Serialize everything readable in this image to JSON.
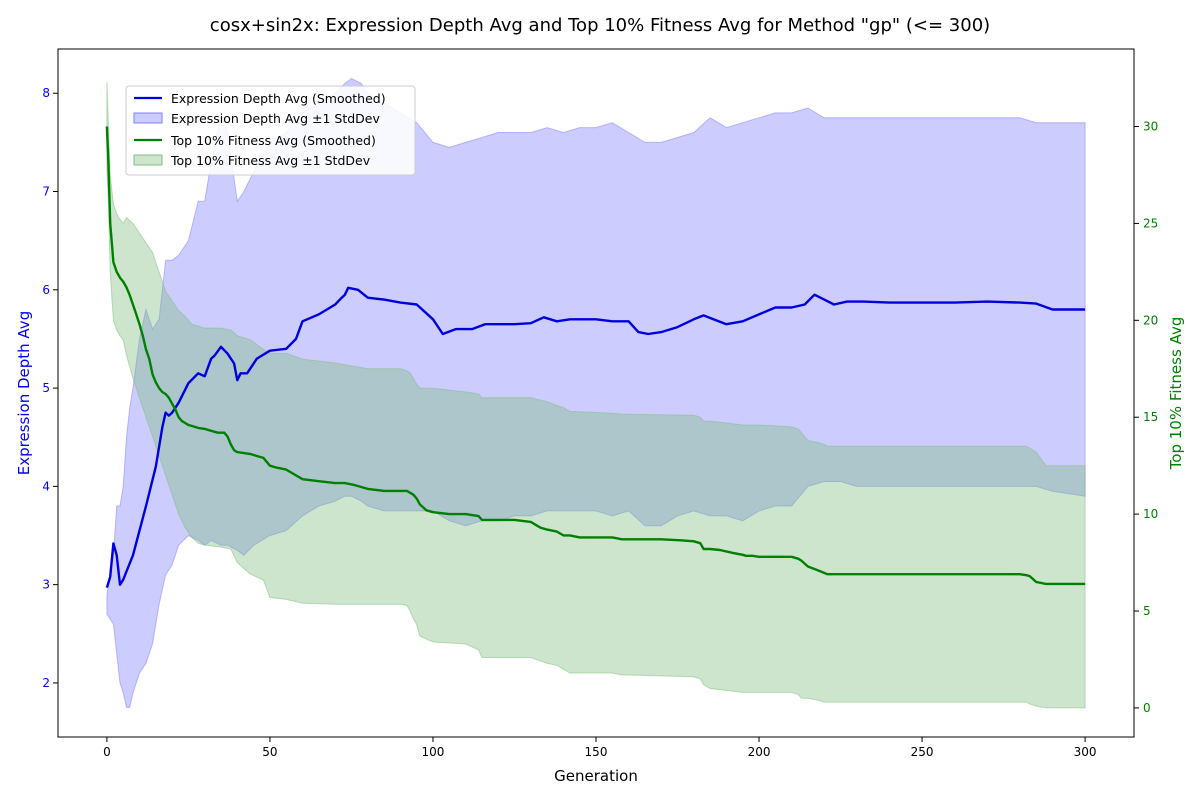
{
  "chart_data": {
    "type": "line",
    "title": "cosx+sin2x: Expression Depth Avg and Top 10% Fitness Avg for Method \"gp\" (<= 300)",
    "xlabel": "Generation",
    "ylabel_left": "Expression Depth Avg",
    "ylabel_right": "Top 10% Fitness Avg",
    "xlim": [
      -15,
      315
    ],
    "ylim_left": [
      1.45,
      8.45
    ],
    "ylim_right": [
      -1.5,
      34
    ],
    "xticks": [
      0,
      50,
      100,
      150,
      200,
      250,
      300
    ],
    "yticks_left": [
      2,
      3,
      4,
      5,
      6,
      7,
      8
    ],
    "yticks_right": [
      0,
      5,
      10,
      15,
      20,
      25,
      30
    ],
    "legend_position": "upper-left",
    "grid": false,
    "colors": {
      "depth": "#0000dd",
      "depth_band": "#8080ff",
      "fitness": "#008000",
      "fitness_band": "#7fbf7f",
      "left_axis_text": "#0000ff",
      "right_axis_text": "#008000"
    },
    "series": [
      {
        "name": "Expression Depth Avg (Smoothed)",
        "axis": "left",
        "x": [
          0,
          1,
          2,
          3,
          4,
          5,
          8,
          12,
          15,
          17,
          18,
          19,
          20,
          22,
          25,
          28,
          30,
          32,
          33,
          35,
          37,
          39,
          40,
          41,
          43,
          46,
          50,
          55,
          58,
          60,
          65,
          70,
          72,
          73,
          74,
          77,
          80,
          85,
          90,
          95,
          100,
          103,
          107,
          112,
          116,
          120,
          125,
          130,
          134,
          138,
          142,
          146,
          150,
          155,
          160,
          163,
          166,
          170,
          175,
          180,
          183,
          186,
          190,
          195,
          200,
          205,
          210,
          214,
          217,
          220,
          223,
          227,
          232,
          240,
          250,
          260,
          270,
          280,
          285,
          290,
          295,
          300
        ],
        "values": [
          2.97,
          3.08,
          3.42,
          3.3,
          3.0,
          3.05,
          3.3,
          3.8,
          4.2,
          4.6,
          4.75,
          4.72,
          4.75,
          4.85,
          5.05,
          5.15,
          5.12,
          5.3,
          5.33,
          5.42,
          5.35,
          5.25,
          5.08,
          5.15,
          5.15,
          5.3,
          5.38,
          5.4,
          5.5,
          5.68,
          5.75,
          5.85,
          5.92,
          5.95,
          6.02,
          6.0,
          5.92,
          5.9,
          5.87,
          5.85,
          5.7,
          5.55,
          5.6,
          5.6,
          5.65,
          5.65,
          5.65,
          5.66,
          5.72,
          5.68,
          5.7,
          5.7,
          5.7,
          5.68,
          5.68,
          5.57,
          5.55,
          5.57,
          5.62,
          5.7,
          5.74,
          5.7,
          5.65,
          5.68,
          5.75,
          5.82,
          5.82,
          5.85,
          5.95,
          5.9,
          5.85,
          5.88,
          5.88,
          5.87,
          5.87,
          5.87,
          5.88,
          5.87,
          5.86,
          5.8,
          5.8,
          5.8
        ]
      },
      {
        "name": "Expression Depth Avg ±1 StdDev",
        "axis": "left",
        "band": true,
        "x": [
          0,
          2,
          3,
          4,
          5,
          6,
          7,
          8,
          10,
          12,
          14,
          16,
          18,
          20,
          22,
          25,
          28,
          30,
          32,
          35,
          37,
          40,
          42,
          45,
          50,
          55,
          60,
          65,
          70,
          73,
          75,
          78,
          80,
          85,
          90,
          95,
          100,
          105,
          110,
          115,
          120,
          125,
          130,
          135,
          140,
          145,
          150,
          155,
          160,
          165,
          170,
          175,
          180,
          185,
          190,
          195,
          200,
          205,
          210,
          215,
          220,
          225,
          230,
          240,
          250,
          260,
          270,
          280,
          285,
          290,
          300
        ],
        "upper": [
          2.9,
          3.3,
          3.8,
          3.8,
          4.0,
          4.5,
          4.8,
          5.0,
          5.5,
          5.8,
          5.6,
          5.7,
          6.3,
          6.3,
          6.35,
          6.5,
          6.9,
          6.9,
          7.3,
          7.8,
          7.6,
          6.9,
          7.0,
          7.2,
          7.5,
          7.6,
          7.8,
          7.9,
          8.0,
          8.1,
          8.15,
          8.1,
          8.0,
          7.9,
          7.8,
          7.7,
          7.5,
          7.45,
          7.5,
          7.55,
          7.6,
          7.6,
          7.6,
          7.65,
          7.6,
          7.65,
          7.65,
          7.7,
          7.6,
          7.5,
          7.5,
          7.55,
          7.6,
          7.75,
          7.65,
          7.7,
          7.75,
          7.8,
          7.8,
          7.85,
          7.75,
          7.75,
          7.75,
          7.75,
          7.75,
          7.75,
          7.75,
          7.75,
          7.7,
          7.7,
          7.7
        ],
        "lower": [
          2.7,
          2.6,
          2.3,
          2.0,
          1.9,
          1.75,
          1.75,
          1.9,
          2.1,
          2.2,
          2.4,
          2.8,
          3.1,
          3.2,
          3.4,
          3.5,
          3.45,
          3.4,
          3.45,
          3.4,
          3.4,
          3.35,
          3.3,
          3.4,
          3.5,
          3.55,
          3.7,
          3.8,
          3.85,
          3.9,
          3.9,
          3.85,
          3.8,
          3.75,
          3.75,
          3.75,
          3.75,
          3.65,
          3.6,
          3.65,
          3.65,
          3.7,
          3.7,
          3.75,
          3.75,
          3.75,
          3.75,
          3.7,
          3.75,
          3.6,
          3.6,
          3.7,
          3.75,
          3.7,
          3.7,
          3.65,
          3.75,
          3.8,
          3.8,
          4.0,
          4.05,
          4.05,
          4.0,
          4.0,
          4.0,
          4.0,
          4.0,
          4.0,
          4.0,
          3.95,
          3.9
        ]
      },
      {
        "name": "Top 10% Fitness Avg (Smoothed)",
        "axis": "right",
        "x": [
          0,
          0.5,
          1,
          1.5,
          2,
          3,
          4,
          5,
          6,
          7,
          8,
          9,
          10,
          11,
          12,
          13,
          14,
          15,
          16,
          17,
          18,
          19,
          20,
          21,
          22,
          23,
          24,
          25,
          26,
          27,
          28,
          30,
          32,
          34,
          36,
          37,
          38,
          39,
          40,
          42,
          44,
          46,
          48,
          50,
          52,
          55,
          58,
          60,
          65,
          70,
          73,
          76,
          80,
          85,
          90,
          92,
          93,
          94,
          95,
          96,
          98,
          100,
          105,
          110,
          114,
          115,
          120,
          125,
          130,
          132,
          133,
          135,
          138,
          140,
          142,
          145,
          150,
          155,
          158,
          160,
          165,
          170,
          176,
          180,
          182,
          183,
          185,
          188,
          192,
          195,
          196,
          198,
          200,
          205,
          210,
          212,
          213,
          215,
          218,
          221,
          222,
          230,
          240,
          250,
          260,
          270,
          280,
          282,
          283,
          285,
          288,
          290,
          300
        ],
        "values": [
          30.0,
          28.0,
          25.0,
          24.0,
          23.0,
          22.5,
          22.2,
          22.0,
          21.7,
          21.3,
          20.8,
          20.3,
          19.8,
          19.2,
          18.5,
          18.0,
          17.2,
          16.8,
          16.5,
          16.3,
          16.2,
          16.0,
          15.7,
          15.4,
          15.0,
          14.8,
          14.7,
          14.6,
          14.55,
          14.5,
          14.45,
          14.4,
          14.3,
          14.2,
          14.2,
          14.0,
          13.6,
          13.3,
          13.2,
          13.15,
          13.1,
          13.0,
          12.9,
          12.5,
          12.4,
          12.3,
          12.0,
          11.8,
          11.7,
          11.6,
          11.6,
          11.5,
          11.3,
          11.2,
          11.2,
          11.2,
          11.1,
          11.0,
          10.8,
          10.5,
          10.2,
          10.1,
          10.0,
          10.0,
          9.9,
          9.7,
          9.7,
          9.7,
          9.6,
          9.4,
          9.3,
          9.2,
          9.1,
          8.9,
          8.9,
          8.8,
          8.8,
          8.8,
          8.7,
          8.7,
          8.7,
          8.7,
          8.65,
          8.6,
          8.5,
          8.2,
          8.2,
          8.15,
          8.0,
          7.9,
          7.85,
          7.85,
          7.8,
          7.8,
          7.8,
          7.7,
          7.6,
          7.3,
          7.1,
          6.9,
          6.9,
          6.9,
          6.9,
          6.9,
          6.9,
          6.9,
          6.9,
          6.85,
          6.8,
          6.5,
          6.4,
          6.4,
          6.4
        ]
      },
      {
        "name": "Top 10% Fitness Avg ±1 StdDev",
        "axis": "right",
        "band": true,
        "x": [
          0,
          0.5,
          1,
          2,
          3,
          4,
          5,
          6,
          8,
          10,
          12,
          14,
          16,
          18,
          20,
          22,
          24,
          26,
          28,
          30,
          35,
          38,
          40,
          44,
          48,
          50,
          55,
          60,
          70,
          80,
          90,
          92,
          93,
          94,
          95,
          96,
          100,
          110,
          114,
          115,
          130,
          135,
          138,
          140,
          142,
          155,
          158,
          160,
          180,
          182,
          183,
          185,
          190,
          195,
          200,
          210,
          212,
          213,
          215,
          218,
          220,
          221,
          222,
          240,
          260,
          280,
          282,
          283,
          285,
          288,
          300
        ],
        "upper": [
          32.3,
          30.0,
          27.5,
          26.0,
          25.5,
          25.2,
          25.0,
          25.3,
          25.0,
          24.5,
          24.0,
          23.5,
          22.5,
          21.5,
          21.0,
          20.5,
          20.2,
          19.8,
          19.7,
          19.6,
          19.6,
          19.5,
          19.2,
          19.0,
          18.5,
          18.3,
          18.3,
          18.0,
          17.8,
          17.5,
          17.5,
          17.4,
          17.3,
          17.0,
          16.7,
          16.5,
          16.5,
          16.3,
          16.2,
          16.0,
          16.0,
          15.8,
          15.6,
          15.5,
          15.3,
          15.2,
          15.15,
          15.15,
          15.1,
          15.0,
          14.8,
          14.8,
          14.7,
          14.6,
          14.6,
          14.5,
          14.4,
          14.2,
          13.8,
          13.7,
          13.6,
          13.5,
          13.5,
          13.5,
          13.5,
          13.5,
          13.5,
          13.4,
          13.2,
          12.5,
          12.5
        ],
        "lower": [
          27.7,
          26.0,
          22.5,
          20.0,
          19.5,
          19.2,
          19.0,
          18.2,
          17.0,
          16.0,
          15.0,
          14.0,
          13.0,
          12.0,
          11.0,
          10.0,
          9.3,
          8.8,
          8.5,
          8.4,
          8.3,
          8.2,
          7.5,
          6.9,
          6.6,
          5.7,
          5.6,
          5.4,
          5.35,
          5.35,
          5.35,
          5.3,
          5.0,
          4.6,
          4.3,
          3.7,
          3.4,
          3.3,
          3.0,
          2.6,
          2.6,
          2.3,
          2.2,
          2.0,
          1.8,
          1.8,
          1.7,
          1.7,
          1.6,
          1.5,
          1.2,
          1.0,
          0.9,
          0.8,
          0.8,
          0.8,
          0.7,
          0.5,
          0.5,
          0.4,
          0.3,
          0.3,
          0.3,
          0.3,
          0.3,
          0.3,
          0.3,
          0.2,
          0.1,
          0.0,
          0.0
        ]
      }
    ]
  }
}
